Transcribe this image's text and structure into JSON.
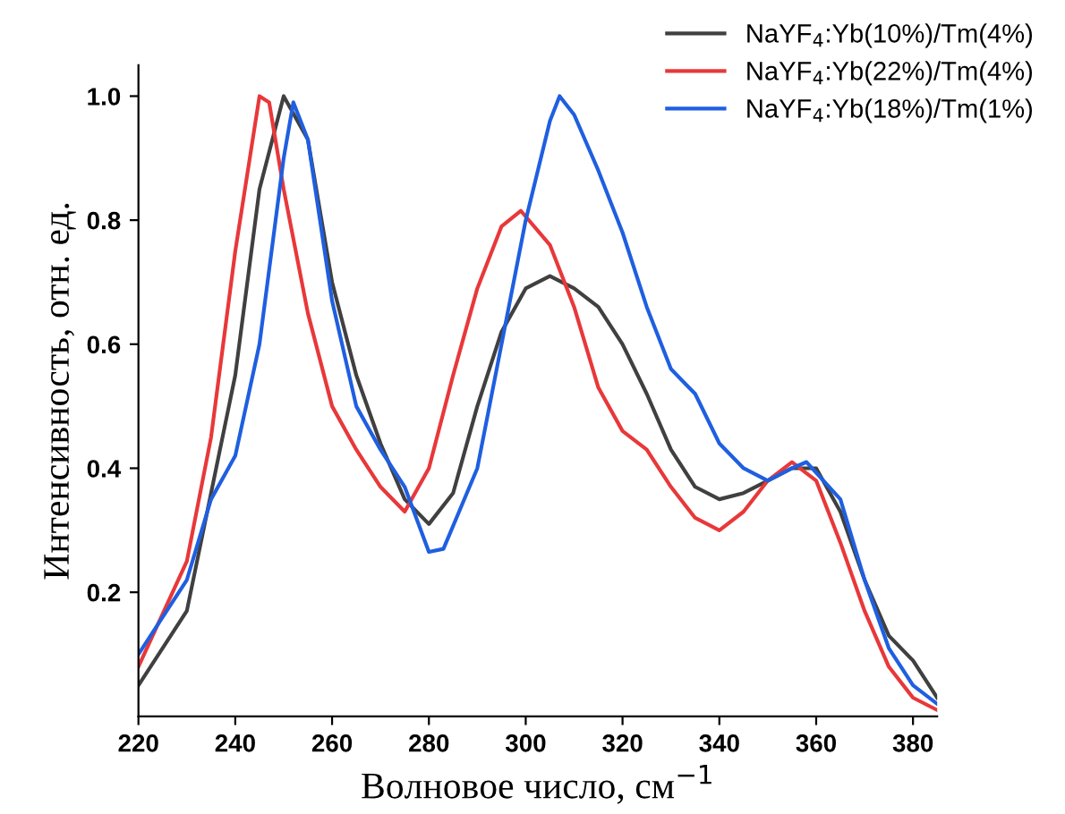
{
  "chart_data": {
    "type": "line",
    "xlabel": "Волновое число, см$^{−1}$",
    "ylabel": "Интенсивность, отн. ед.",
    "xlim": [
      220,
      385
    ],
    "ylim": [
      0,
      1.05
    ],
    "xticks": [
      220,
      240,
      260,
      280,
      300,
      320,
      340,
      360,
      380
    ],
    "yticks": [
      0.2,
      0.4,
      0.6,
      0.8,
      {
        "value": 1,
        "label": "1.0"
      }
    ],
    "legend": "top right",
    "grid": false,
    "marker": "none",
    "line_style": "solid",
    "series": [
      {
        "name": "NaYF$_{4}$:Yb(10%)/Tm(4%)",
        "color": "#404040",
        "x": [
          220,
          230,
          240,
          245,
          250,
          255,
          260,
          265,
          270,
          275,
          280,
          285,
          290,
          295,
          300,
          305,
          310,
          315,
          320,
          325,
          330,
          335,
          340,
          345,
          350,
          355,
          360,
          365,
          370,
          375,
          380,
          385
        ],
        "values": [
          0.05,
          0.17,
          0.55,
          0.85,
          1.0,
          0.93,
          0.7,
          0.55,
          0.44,
          0.35,
          0.31,
          0.36,
          0.5,
          0.62,
          0.69,
          0.71,
          0.69,
          0.66,
          0.6,
          0.52,
          0.43,
          0.37,
          0.35,
          0.36,
          0.38,
          0.4,
          0.4,
          0.33,
          0.22,
          0.13,
          0.09,
          0.03
        ]
      },
      {
        "name": "NaYF$_{4}$:Yb(22%)/Tm(4%)",
        "color": "#e8383a",
        "x": [
          220,
          230,
          235,
          240,
          245,
          247,
          250,
          255,
          260,
          265,
          270,
          275,
          280,
          285,
          290,
          295,
          299,
          305,
          310,
          315,
          320,
          325,
          330,
          335,
          340,
          345,
          350,
          355,
          360,
          365,
          370,
          375,
          380,
          385
        ],
        "values": [
          0.08,
          0.25,
          0.45,
          0.75,
          1.0,
          0.99,
          0.85,
          0.65,
          0.5,
          0.43,
          0.37,
          0.33,
          0.4,
          0.55,
          0.69,
          0.79,
          0.815,
          0.76,
          0.66,
          0.53,
          0.46,
          0.43,
          0.37,
          0.32,
          0.3,
          0.33,
          0.38,
          0.41,
          0.38,
          0.28,
          0.17,
          0.08,
          0.03,
          0.01
        ]
      },
      {
        "name": "NaYF$_{4}$:Yb(18%)/Tm(1%)",
        "color": "#1f5fe0",
        "x": [
          220,
          230,
          235,
          240,
          245,
          250,
          252,
          255,
          260,
          265,
          270,
          275,
          280,
          283,
          290,
          295,
          300,
          305,
          307,
          310,
          315,
          320,
          325,
          330,
          335,
          340,
          345,
          350,
          355,
          358,
          365,
          370,
          375,
          380,
          385
        ],
        "values": [
          0.1,
          0.22,
          0.35,
          0.42,
          0.6,
          0.9,
          0.99,
          0.93,
          0.67,
          0.5,
          0.43,
          0.37,
          0.265,
          0.27,
          0.4,
          0.6,
          0.8,
          0.96,
          1.0,
          0.97,
          0.88,
          0.78,
          0.66,
          0.56,
          0.52,
          0.44,
          0.4,
          0.38,
          0.4,
          0.41,
          0.35,
          0.22,
          0.11,
          0.05,
          0.02
        ]
      }
    ]
  }
}
